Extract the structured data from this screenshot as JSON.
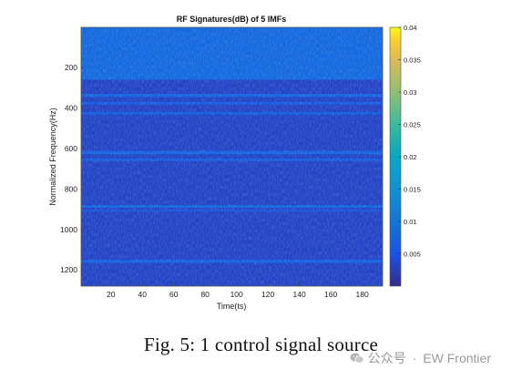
{
  "chart_data": {
    "type": "heatmap",
    "title": "RF Signatures(dB) of 5 IMFs",
    "xlabel": "Time(ts)",
    "ylabel": "Normalized Frequency(Hz)",
    "xlim": [
      1,
      193
    ],
    "ylim": [
      1,
      1280
    ],
    "y_reversed": true,
    "xticks": [
      20,
      40,
      60,
      80,
      100,
      120,
      140,
      160,
      180
    ],
    "yticks": [
      200,
      400,
      600,
      800,
      1000,
      1200
    ],
    "colorbar": {
      "range": [
        0,
        0.04
      ],
      "ticks": [
        0.005,
        0.01,
        0.015,
        0.02,
        0.025,
        0.03,
        0.035,
        0.04
      ],
      "tick_labels": [
        "0.005",
        "0.01",
        "0.015",
        "0.02",
        "0.025",
        "0.03",
        "0.035",
        "0.04"
      ],
      "colormap": "parula"
    },
    "background_level": 0.003,
    "bands": [
      {
        "freq_range": [
          1,
          260
        ],
        "level": 0.008
      },
      {
        "freq_range": [
          330,
          345
        ],
        "level": 0.0075
      },
      {
        "freq_range": [
          370,
          382
        ],
        "level": 0.0065
      },
      {
        "freq_range": [
          420,
          432
        ],
        "level": 0.0065
      },
      {
        "freq_range": [
          612,
          628
        ],
        "level": 0.0075
      },
      {
        "freq_range": [
          650,
          662
        ],
        "level": 0.0068
      },
      {
        "freq_range": [
          880,
          893
        ],
        "level": 0.0078
      },
      {
        "freq_range": [
          903,
          910
        ],
        "level": 0.0062
      },
      {
        "freq_range": [
          1150,
          1165
        ],
        "level": 0.0072
      }
    ],
    "grid": false
  },
  "caption": "Fig. 5: 1 control signal source",
  "watermark": {
    "platform": "公众号",
    "separator": "·",
    "account": "EW Frontier"
  }
}
